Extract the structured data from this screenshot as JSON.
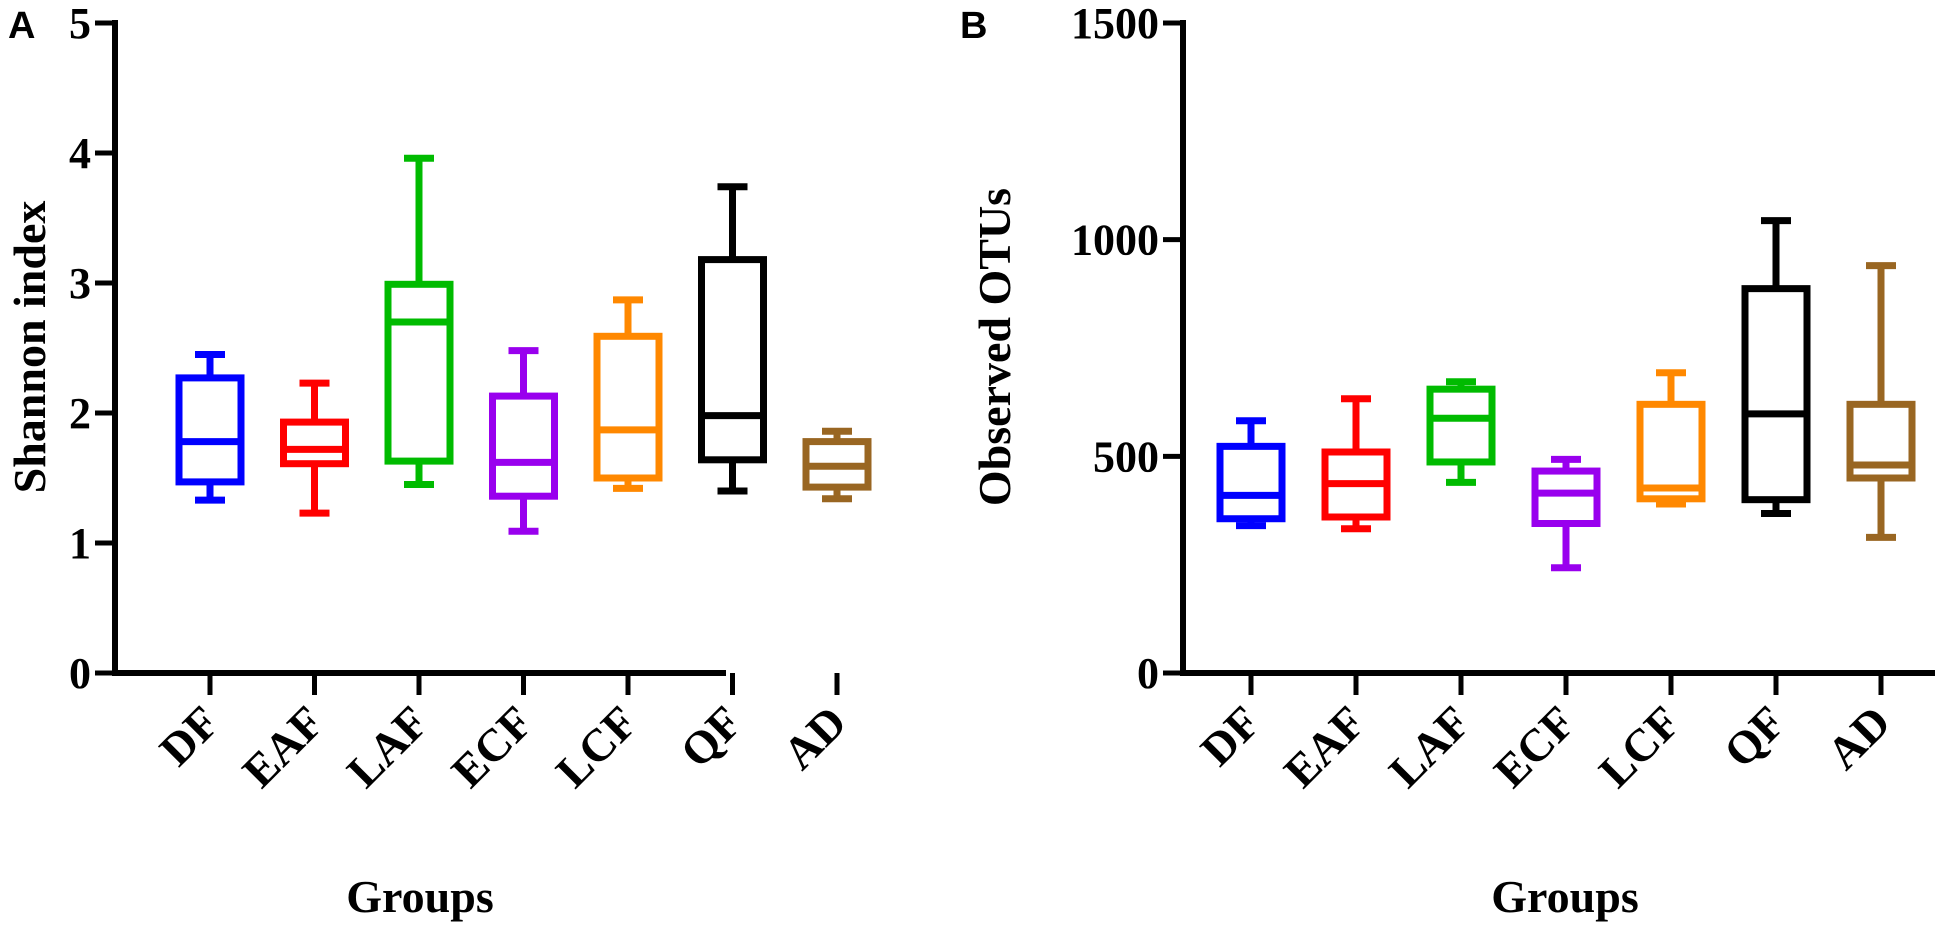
{
  "chart_data": [
    {
      "type": "box",
      "panel_label": "A",
      "ylabel": "Shannon index",
      "xlabel": "Groups",
      "ylim": [
        0,
        5
      ],
      "yticks": [
        0,
        1,
        2,
        3,
        4,
        5
      ],
      "categories": [
        "DF",
        "EAF",
        "LAF",
        "ECF",
        "LCF",
        "QF",
        "AD"
      ],
      "colors": [
        "#0000ff",
        "#ff0000",
        "#00bb00",
        "#9900ee",
        "#ff8800",
        "#000000",
        "#996622"
      ],
      "boxes": [
        {
          "min": 1.33,
          "q1": 1.47,
          "median": 1.78,
          "q3": 2.27,
          "max": 2.45
        },
        {
          "min": 1.23,
          "q1": 1.61,
          "median": 1.72,
          "q3": 1.93,
          "max": 2.23
        },
        {
          "min": 1.45,
          "q1": 1.63,
          "median": 2.7,
          "q3": 2.99,
          "max": 3.96
        },
        {
          "min": 1.09,
          "q1": 1.36,
          "median": 1.62,
          "q3": 2.13,
          "max": 2.48
        },
        {
          "min": 1.42,
          "q1": 1.5,
          "median": 1.87,
          "q3": 2.59,
          "max": 2.87
        },
        {
          "min": 1.4,
          "q1": 1.64,
          "median": 1.98,
          "q3": 3.18,
          "max": 3.74
        },
        {
          "min": 1.34,
          "q1": 1.43,
          "median": 1.59,
          "q3": 1.78,
          "max": 1.86
        }
      ]
    },
    {
      "type": "box",
      "panel_label": "B",
      "ylabel": "Observed OTUs",
      "xlabel": "Groups",
      "ylim": [
        0,
        1500
      ],
      "yticks": [
        0,
        500,
        1000,
        1500
      ],
      "categories": [
        "DF",
        "EAF",
        "LAF",
        "ECF",
        "LCF",
        "QF",
        "AD"
      ],
      "colors": [
        "#0000ff",
        "#ff0000",
        "#00bb00",
        "#9900ee",
        "#ff8800",
        "#000000",
        "#996622"
      ],
      "boxes": [
        {
          "min": 340,
          "q1": 356,
          "median": 410,
          "q3": 523,
          "max": 582
        },
        {
          "min": 333,
          "q1": 360,
          "median": 437,
          "q3": 510,
          "max": 633
        },
        {
          "min": 440,
          "q1": 487,
          "median": 588,
          "q3": 655,
          "max": 672
        },
        {
          "min": 243,
          "q1": 345,
          "median": 415,
          "q3": 466,
          "max": 493
        },
        {
          "min": 390,
          "q1": 402,
          "median": 427,
          "q3": 620,
          "max": 693
        },
        {
          "min": 368,
          "q1": 400,
          "median": 598,
          "q3": 887,
          "max": 1044
        },
        {
          "min": 313,
          "q1": 450,
          "median": 480,
          "q3": 620,
          "max": 940
        }
      ]
    }
  ]
}
